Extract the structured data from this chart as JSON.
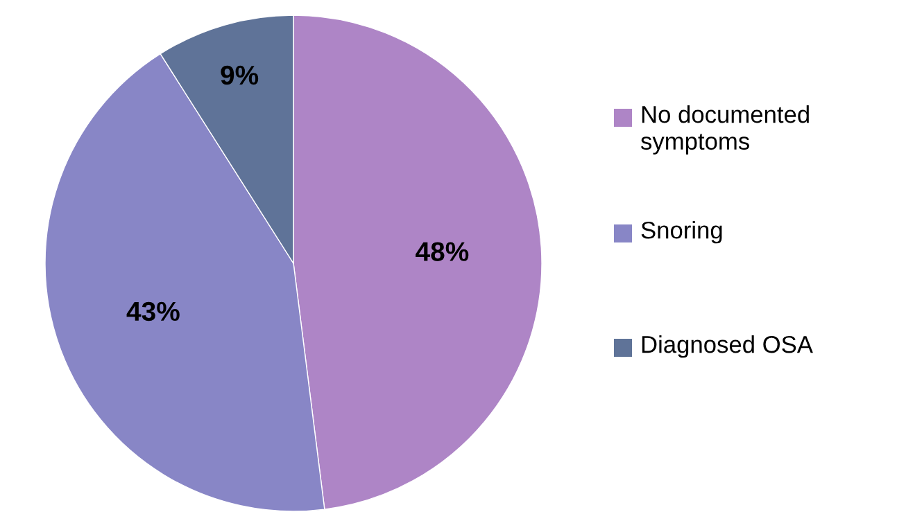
{
  "chart_data": {
    "type": "pie",
    "categories": [
      "No documented symptoms",
      "Snoring",
      "Diagnosed OSA"
    ],
    "values": [
      48,
      43,
      9
    ],
    "colors": [
      "#ae85c6",
      "#8886c6",
      "#5f7398"
    ],
    "value_labels": [
      "48%",
      "43%",
      "9%"
    ],
    "legend": "right"
  }
}
